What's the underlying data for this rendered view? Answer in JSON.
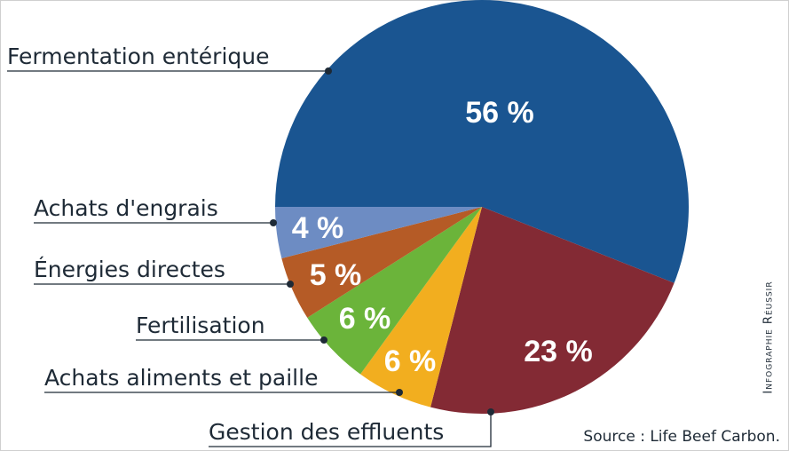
{
  "chart_data": {
    "type": "pie",
    "slices": [
      {
        "name": "Fermentation entérique",
        "value": 56,
        "label": "56 %",
        "color": "#1a5591"
      },
      {
        "name": "Gestion des effluents",
        "value": 23,
        "label": "23 %",
        "color": "#832a34"
      },
      {
        "name": "Achats aliments et paille",
        "value": 6,
        "label": "6 %",
        "color": "#f2ae1f"
      },
      {
        "name": "Fertilisation",
        "value": 6,
        "label": "6 %",
        "color": "#6bb43a"
      },
      {
        "name": "Énergies directes",
        "value": 5,
        "label": "5 %",
        "color": "#b55b26"
      },
      {
        "name": "Achats d'engrais",
        "value": 4,
        "label": "4 %",
        "color": "#6d8cc3"
      }
    ]
  },
  "source": "Source : Life Beef Carbon.",
  "credit": "Infographie Réussir"
}
